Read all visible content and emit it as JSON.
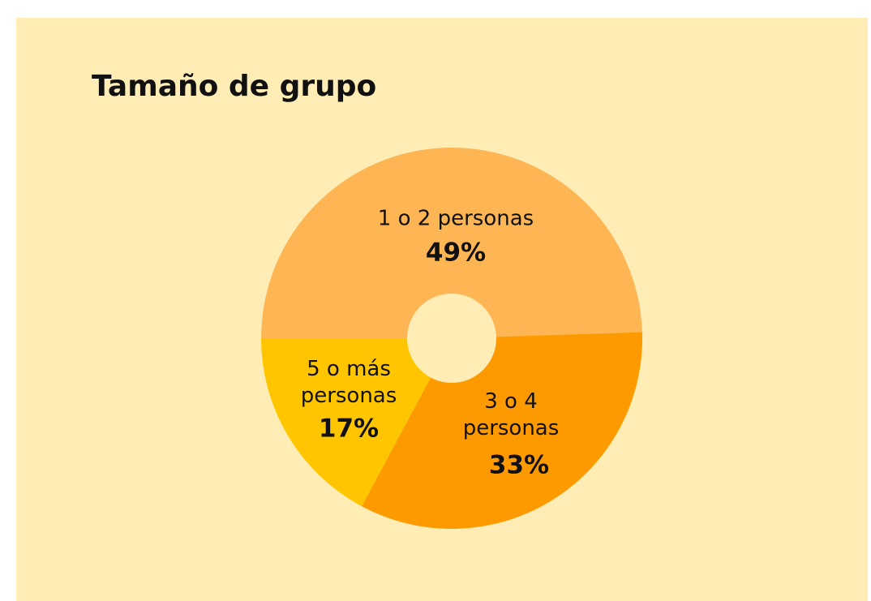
{
  "chart_data": {
    "type": "donut",
    "title": "Tamaño de grupo",
    "categories": [
      "1 o 2 personas",
      "3 o 4 personas",
      "5 o más personas"
    ],
    "values": [
      49,
      33,
      17
    ],
    "value_labels": [
      "49%",
      "33%",
      "17%"
    ],
    "colors": [
      "#fdb653",
      "#fd9a00",
      "#ffc600"
    ]
  }
}
